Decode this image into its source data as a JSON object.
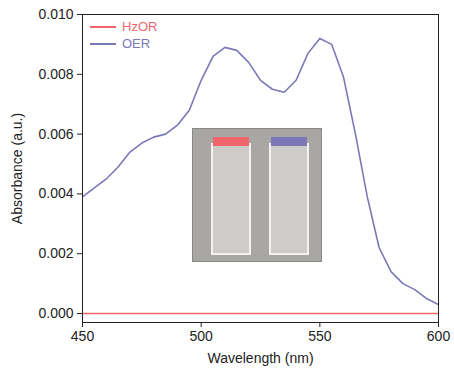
{
  "chart_data": {
    "type": "line",
    "x_label": "Wavelength (nm)",
    "y_label": "Absorbance (a.u.)",
    "x": [
      450,
      455,
      460,
      465,
      470,
      475,
      480,
      485,
      490,
      495,
      500,
      505,
      510,
      515,
      520,
      525,
      530,
      535,
      540,
      545,
      550,
      555,
      560,
      565,
      570,
      575,
      580,
      585,
      590,
      595,
      600
    ],
    "series": [
      {
        "name": "HzOR",
        "color": "#f0656a",
        "values": [
          0,
          0,
          0,
          0,
          0,
          0,
          0,
          0,
          0,
          0,
          0,
          0,
          0,
          0,
          0,
          0,
          0,
          0,
          0,
          0,
          0,
          0,
          0,
          0,
          0,
          0,
          0,
          0,
          0,
          0,
          0
        ]
      },
      {
        "name": "OER",
        "color": "#7b78b8",
        "values": [
          0.0039,
          0.0042,
          0.0045,
          0.0049,
          0.0054,
          0.0057,
          0.0059,
          0.006,
          0.0063,
          0.0068,
          0.0078,
          0.0086,
          0.0089,
          0.0088,
          0.0084,
          0.0078,
          0.0075,
          0.0074,
          0.0078,
          0.0087,
          0.0092,
          0.009,
          0.0079,
          0.006,
          0.0039,
          0.0022,
          0.0014,
          0.001,
          0.0008,
          0.0005,
          0.0003
        ]
      }
    ],
    "xlim": [
      450,
      600
    ],
    "xticks": [
      450,
      500,
      550,
      600
    ],
    "ylim": [
      -0.0003,
      0.01
    ],
    "yticks": [
      {
        "value": 0,
        "label": "0.000"
      },
      {
        "value": 0.002,
        "label": "0.002"
      },
      {
        "value": 0.004,
        "label": "0.004"
      },
      {
        "value": 0.006,
        "label": "0.006"
      },
      {
        "value": 0.008,
        "label": "0.008"
      },
      {
        "value": 0.01,
        "label": "0.010"
      }
    ],
    "legend": "top-left",
    "grid": false
  }
}
